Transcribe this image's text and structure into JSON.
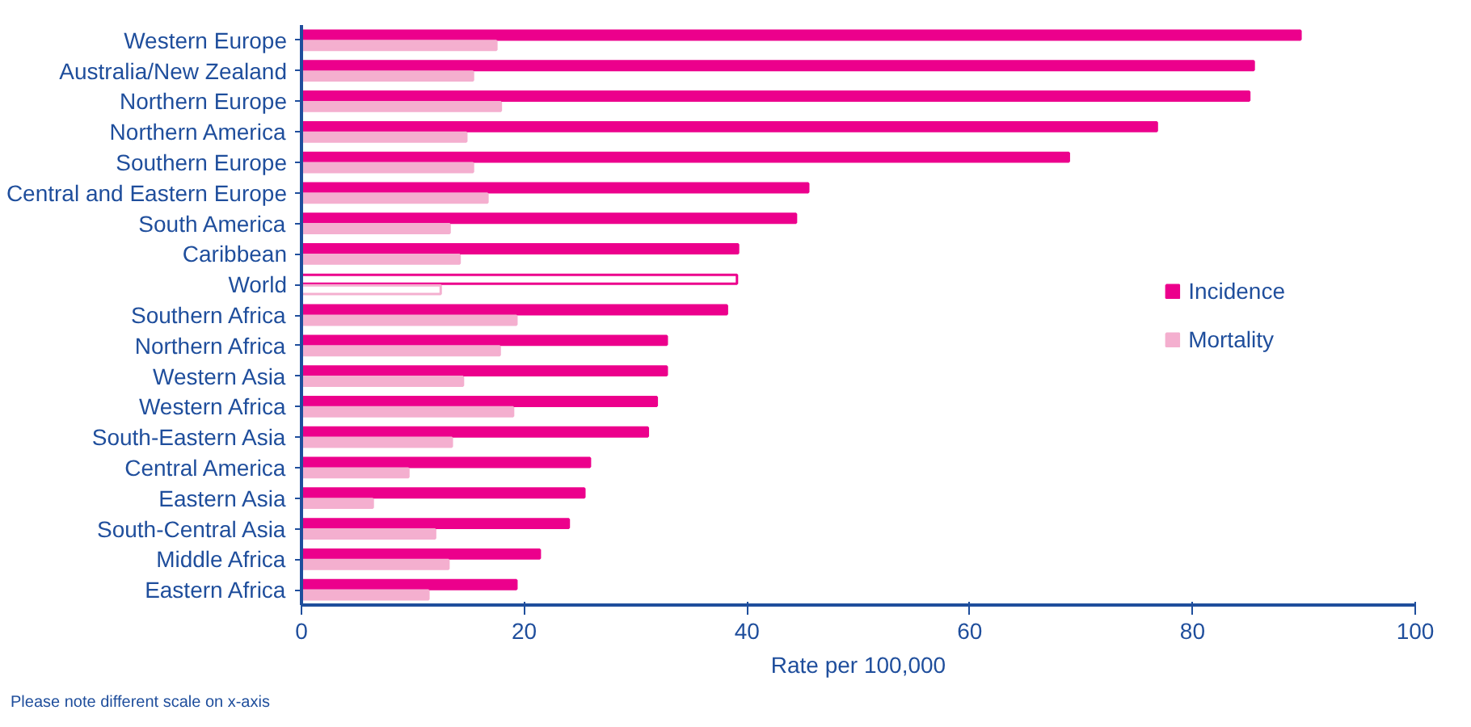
{
  "chart_data": {
    "type": "bar",
    "orientation": "horizontal",
    "xlabel": "Rate per 100,000",
    "categories": [
      "Western Europe",
      "Australia/New Zealand",
      "Northern Europe",
      "Northern America",
      "Southern Europe",
      "Central and Eastern Europe",
      "South America",
      "Caribbean",
      "World",
      "Southern Africa",
      "Northern Africa",
      "Western Asia",
      "Western Africa",
      "South-Eastern Asia",
      "Central America",
      "Eastern Asia",
      "South-Central Asia",
      "Middle Africa",
      "Eastern Africa"
    ],
    "series": [
      {
        "name": "Incidence",
        "color": "#ec008c",
        "colors": [
          "#ec008c",
          "#ec008c",
          "#ec008c",
          "#ec008c",
          "#ec008c",
          "#ec008c",
          "#ec008c",
          "#ec008c",
          "#ffffff",
          "#ec008c",
          "#ec008c",
          "#ec008c",
          "#ec008c",
          "#ec008c",
          "#ec008c",
          "#ec008c",
          "#ec008c",
          "#ec008c",
          "#ec008c"
        ],
        "values": [
          89.7,
          85.5,
          85.1,
          76.8,
          68.9,
          45.5,
          44.4,
          39.2,
          39.1,
          38.2,
          32.8,
          32.8,
          31.9,
          31.1,
          25.9,
          25.4,
          24.0,
          21.4,
          19.3
        ]
      },
      {
        "name": "Mortality",
        "color": "#f4afcf",
        "colors": [
          "#f4afcf",
          "#f4afcf",
          "#f4afcf",
          "#f4afcf",
          "#f4afcf",
          "#f4afcf",
          "#f4afcf",
          "#f4afcf",
          "#ffffff",
          "#f4afcf",
          "#f4afcf",
          "#f4afcf",
          "#f4afcf",
          "#f4afcf",
          "#f4afcf",
          "#f4afcf",
          "#f4afcf",
          "#f4afcf",
          "#f4afcf"
        ],
        "values": [
          17.5,
          15.4,
          17.9,
          14.8,
          15.4,
          16.7,
          13.3,
          14.2,
          12.5,
          19.3,
          17.8,
          14.5,
          19.0,
          13.5,
          9.6,
          6.4,
          12.0,
          13.2,
          11.4
        ]
      }
    ],
    "xlim": [
      0,
      100
    ],
    "xticks": [
      0,
      20,
      40,
      60,
      80,
      100
    ],
    "grid": false,
    "legend": "right",
    "annotations": [
      "Please note different scale on x-axis"
    ]
  }
}
